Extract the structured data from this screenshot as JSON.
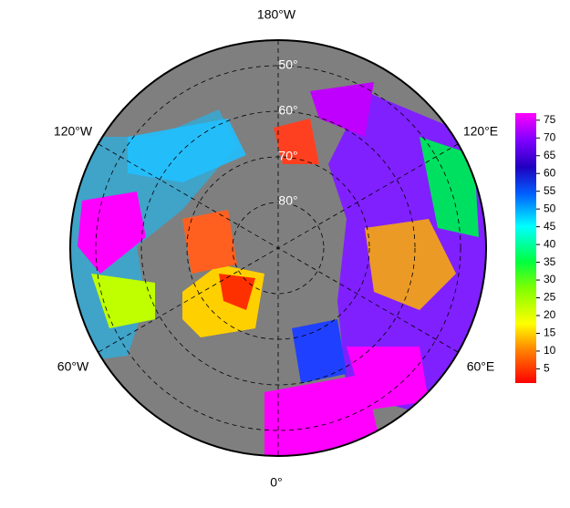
{
  "map": {
    "longitude_labels": {
      "top": "180°W",
      "bottom": "0°",
      "upper_left": "120°W",
      "upper_right": "120°E",
      "lower_left": "60°W",
      "lower_right": "60°E"
    },
    "latitude_labels": [
      "50°",
      "60°",
      "70°",
      "80°"
    ],
    "colorbar": {
      "range": [
        1,
        77
      ],
      "ticks": [
        5,
        10,
        15,
        20,
        25,
        30,
        35,
        40,
        45,
        50,
        55,
        60,
        65,
        70,
        75
      ]
    }
  }
}
